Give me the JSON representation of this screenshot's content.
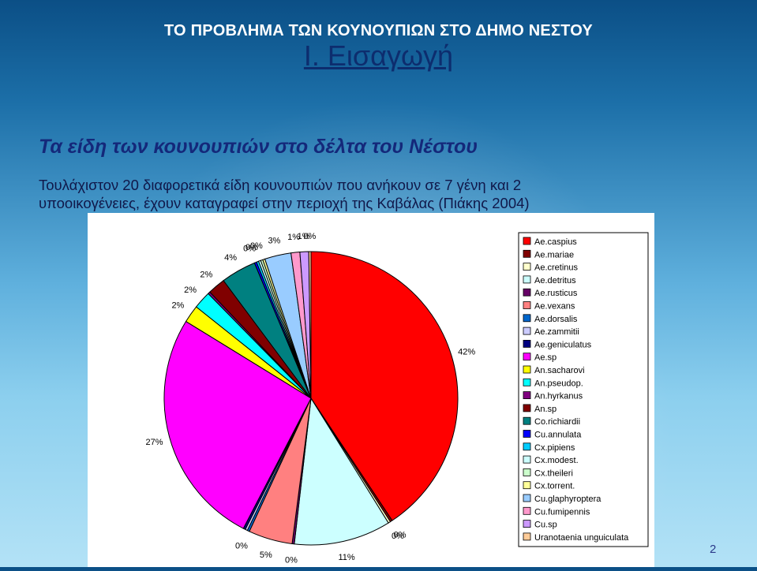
{
  "header": {
    "title": "ΤΟ ΠΡΟΒΛΗΜΑ ΤΩΝ ΚΟΥΝΟΥΠΙΩΝ ΣΤΟ ΔΗΜΟ ΝΕΣΤΟΥ",
    "subtitle": "I. Εισαγωγή"
  },
  "section": {
    "heading": "Τα είδη των κουνουπιών στο δέλτα του Νέστου",
    "line1": "Τουλάχιστον 20 διαφορετικά είδη κουνουπιών που ανήκουν σε  7 γένη και 2",
    "line2": "υποοικογένειες, έχουν καταγραφεί στην περιοχή της Καβάλας (Πιάκης 2004)"
  },
  "page_number": "2",
  "chart_data": {
    "type": "pie",
    "title": "",
    "legend_position": "right",
    "slices": [
      {
        "name": "Ae.caspius",
        "value": 42,
        "label": "42%",
        "color": "#ff0000"
      },
      {
        "name": "Ae.mariae",
        "value": 0,
        "label": "0%",
        "color": "#800000"
      },
      {
        "name": "Ae.cretinus",
        "value": 0,
        "label": "0%",
        "color": "#ffffcc"
      },
      {
        "name": "Ae.detritus",
        "value": 11,
        "label": "11%",
        "color": "#ccffff"
      },
      {
        "name": "Ae.rusticus",
        "value": 0,
        "label": "0%",
        "color": "#660066"
      },
      {
        "name": "Ae.vexans",
        "value": 5,
        "label": "5%",
        "color": "#ff8080"
      },
      {
        "name": "Ae.dorsalis",
        "value": 0,
        "label": "0%",
        "color": "#0066cc"
      },
      {
        "name": "Ae.zammitii",
        "value": 0,
        "label": "",
        "color": "#ccccff"
      },
      {
        "name": "Ae.geniculatus",
        "value": 0,
        "label": "",
        "color": "#000080"
      },
      {
        "name": "Ae.sp",
        "value": 27,
        "label": "27%",
        "color": "#ff00ff"
      },
      {
        "name": "An.sacharovi",
        "value": 2,
        "label": "2%",
        "color": "#ffff00"
      },
      {
        "name": "An.pseudop.",
        "value": 2,
        "label": "2%",
        "color": "#00ffff"
      },
      {
        "name": "An.hyrkanus",
        "value": 0,
        "label": "",
        "color": "#800080"
      },
      {
        "name": "An.sp",
        "value": 2,
        "label": "2%",
        "color": "#800000"
      },
      {
        "name": "Co.richiardii",
        "value": 4,
        "label": "4%",
        "color": "#008080"
      },
      {
        "name": "Cu.annulata",
        "value": 0,
        "label": "0%",
        "color": "#0000ff"
      },
      {
        "name": "Cx.pipiens",
        "value": 0,
        "label": "0%",
        "color": "#00ccff"
      },
      {
        "name": "Cx.modest.",
        "value": 0,
        "label": "",
        "color": "#ccffff"
      },
      {
        "name": "Cx.theileri",
        "value": 0,
        "label": "0%",
        "color": "#ccffcc"
      },
      {
        "name": "Cx.torrent.",
        "value": 0,
        "label": "",
        "color": "#ffff99"
      },
      {
        "name": "Cu.glaphyroptera",
        "value": 3,
        "label": "3%",
        "color": "#99ccff"
      },
      {
        "name": "Cu.fumipennis",
        "value": 1,
        "label": "1%",
        "color": "#ff99cc"
      },
      {
        "name": "Cu.sp",
        "value": 1,
        "label": "1%",
        "color": "#cc99ff"
      },
      {
        "name": "Uranotaenia unguiculata",
        "value": 0,
        "label": "0%",
        "color": "#ffcc99"
      }
    ]
  }
}
